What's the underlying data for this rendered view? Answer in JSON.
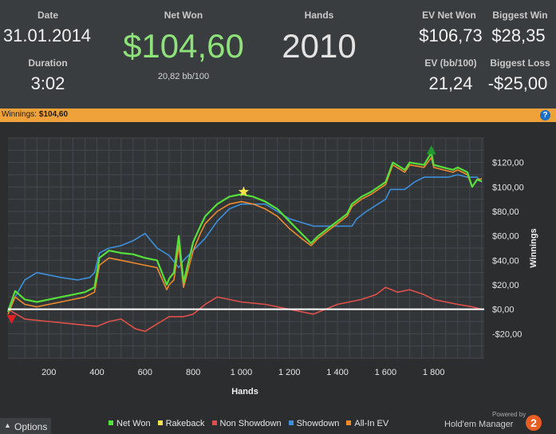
{
  "stats": {
    "date_label": "Date",
    "date_value": "31.01.2014",
    "duration_label": "Duration",
    "duration_value": "3:02",
    "net_won_label": "Net Won",
    "net_won_value": "$104,60",
    "net_won_bb": "20,82 bb/100",
    "hands_label": "Hands",
    "hands_value": "2010",
    "ev_net_won_label": "EV Net Won",
    "ev_net_won_value": "$106,73",
    "ev_bb_label": "EV (bb/100)",
    "ev_bb_value": "21,24",
    "biggest_win_label": "Biggest Win",
    "biggest_win_value": "$28,35",
    "biggest_loss_label": "Biggest Loss",
    "biggest_loss_value": "-$25,00"
  },
  "titlebar": {
    "label": "Winnings:",
    "value": "$104,60",
    "help_icon": "question-icon"
  },
  "footer": {
    "options_label": "Options",
    "powered_by": "Powered by",
    "brand": "Hold'em Manager",
    "brand_logo": "2"
  },
  "colors": {
    "net_won": "#55e03a",
    "rakeback": "#f3e24a",
    "non_showdown": "#e0504a",
    "showdown": "#3d8fdc",
    "all_in_ev": "#ef8a2d",
    "accent": "#f0a23a"
  },
  "chart_data": {
    "type": "line",
    "xlabel": "Hands",
    "ylabel": "Winnings",
    "xlim": [
      30,
      2010
    ],
    "ylim": [
      -40,
      140
    ],
    "x_ticks": [
      200,
      400,
      600,
      800,
      1000,
      1200,
      1400,
      1600,
      1800
    ],
    "x_tick_labels": [
      "200",
      "400",
      "600",
      "800",
      "1 000",
      "1 200",
      "1 400",
      "1 600",
      "1 800"
    ],
    "y_ticks": [
      -20,
      0,
      20,
      40,
      60,
      80,
      100,
      120
    ],
    "y_tick_labels": [
      "-$20,00",
      "$0,00",
      "$20,00",
      "$40,00",
      "$60,00",
      "$80,00",
      "$100,00",
      "$120,00"
    ],
    "grid": true,
    "legend_position": "bottom",
    "series": [
      {
        "name": "Net Won",
        "color": "#55e03a",
        "x": [
          30,
          60,
          100,
          150,
          200,
          250,
          300,
          350,
          390,
          410,
          450,
          500,
          550,
          600,
          650,
          690,
          700,
          720,
          740,
          760,
          800,
          830,
          850,
          880,
          900,
          950,
          1000,
          1050,
          1100,
          1150,
          1200,
          1250,
          1290,
          1300,
          1320,
          1360,
          1400,
          1440,
          1460,
          1500,
          1540,
          1600,
          1630,
          1680,
          1700,
          1760,
          1790,
          1800,
          1840,
          1880,
          1900,
          1940,
          1960,
          1980,
          2000
        ],
        "y": [
          -2,
          15,
          8,
          6,
          8,
          10,
          12,
          14,
          18,
          42,
          48,
          46,
          45,
          42,
          40,
          20,
          25,
          30,
          60,
          22,
          55,
          68,
          76,
          82,
          86,
          92,
          94,
          92,
          88,
          82,
          72,
          62,
          54,
          56,
          60,
          66,
          72,
          78,
          86,
          92,
          96,
          104,
          120,
          114,
          120,
          118,
          128,
          118,
          116,
          114,
          116,
          112,
          100,
          106,
          104.6
        ]
      },
      {
        "name": "Rakeback",
        "color": "#f3e24a",
        "x": [
          30,
          2010
        ],
        "y": [
          0,
          0
        ]
      },
      {
        "name": "Non Showdown",
        "color": "#e0504a",
        "x": [
          30,
          100,
          200,
          300,
          400,
          450,
          500,
          560,
          600,
          650,
          700,
          760,
          800,
          850,
          900,
          950,
          1000,
          1100,
          1200,
          1300,
          1400,
          1500,
          1560,
          1600,
          1650,
          1700,
          1760,
          1800,
          1850,
          1900,
          1960,
          2000
        ],
        "y": [
          0,
          -8,
          -10,
          -12,
          -14,
          -10,
          -8,
          -16,
          -18,
          -12,
          -6,
          -6,
          -4,
          4,
          10,
          8,
          6,
          4,
          0,
          -4,
          4,
          8,
          12,
          18,
          14,
          16,
          12,
          8,
          6,
          4,
          2,
          0
        ]
      },
      {
        "name": "Showdown",
        "color": "#3d8fdc",
        "x": [
          30,
          100,
          150,
          200,
          250,
          320,
          370,
          390,
          410,
          450,
          500,
          550,
          600,
          650,
          700,
          740,
          760,
          800,
          850,
          900,
          950,
          1000,
          1100,
          1200,
          1300,
          1400,
          1460,
          1480,
          1520,
          1600,
          1620,
          1680,
          1720,
          1760,
          1800,
          1860,
          1900,
          1940,
          1980,
          2000
        ],
        "y": [
          0,
          24,
          30,
          28,
          26,
          24,
          26,
          30,
          46,
          50,
          52,
          56,
          62,
          50,
          44,
          34,
          40,
          48,
          58,
          72,
          82,
          86,
          86,
          74,
          68,
          68,
          68,
          74,
          80,
          90,
          98,
          98,
          104,
          108,
          108,
          108,
          110,
          108,
          108,
          104
        ]
      },
      {
        "name": "All-In EV",
        "color": "#ef8a2d",
        "x": [
          30,
          60,
          100,
          150,
          200,
          250,
          300,
          350,
          390,
          410,
          450,
          500,
          550,
          600,
          650,
          690,
          700,
          720,
          740,
          760,
          800,
          830,
          850,
          880,
          900,
          950,
          1000,
          1050,
          1100,
          1150,
          1200,
          1250,
          1290,
          1300,
          1320,
          1360,
          1400,
          1440,
          1460,
          1500,
          1540,
          1600,
          1630,
          1680,
          1700,
          1760,
          1790,
          1800,
          1840,
          1880,
          1900,
          1940,
          1960,
          1980,
          2000
        ],
        "y": [
          -4,
          10,
          4,
          2,
          4,
          6,
          8,
          10,
          14,
          36,
          42,
          40,
          38,
          36,
          34,
          16,
          20,
          24,
          52,
          18,
          48,
          62,
          70,
          76,
          80,
          86,
          88,
          86,
          82,
          76,
          66,
          58,
          52,
          54,
          58,
          64,
          70,
          76,
          84,
          90,
          94,
          102,
          118,
          112,
          118,
          116,
          124,
          116,
          114,
          112,
          114,
          110,
          100,
          106,
          106.7
        ]
      }
    ],
    "markers": [
      {
        "type": "star",
        "x": 1010,
        "y": 96,
        "color": "#f3e24a"
      },
      {
        "type": "triangle-up",
        "x": 1790,
        "y": 130,
        "color": "#1e9a2e"
      },
      {
        "type": "triangle-down",
        "x": 45,
        "y": -8,
        "color": "#e02020"
      }
    ]
  }
}
